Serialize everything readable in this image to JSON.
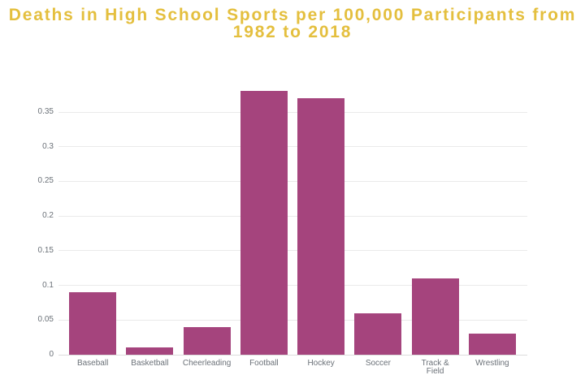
{
  "page": {
    "background": "#ffffff"
  },
  "title": {
    "text": "Deaths in High School Sports per 100,000 Participants from 1982 to 2018",
    "line1": "Deaths in High School Sports per 100,000 Participants from",
    "line2": "1982 to 2018",
    "color": "#E4BF3E"
  },
  "chart_data": {
    "type": "bar",
    "title": "Deaths in High School Sports per 100,000 Participants from 1982 to 2018",
    "categories": [
      "Baseball",
      "Basketball",
      "Cheerleading",
      "Football",
      "Hockey",
      "Soccer",
      "Track & Field",
      "Wrestling"
    ],
    "values": [
      0.09,
      0.01,
      0.04,
      0.38,
      0.37,
      0.06,
      0.11,
      0.03
    ],
    "xtick_labels": [
      "Baseball",
      "Basketball",
      "Cheerleading",
      "Football",
      "Hockey",
      "Soccer",
      "Track &\nField",
      "Wrestling"
    ],
    "xlabel": "",
    "ylabel": "",
    "ylim": [
      0,
      0.38
    ],
    "yticks": [
      0,
      0.05,
      0.1,
      0.15,
      0.2,
      0.25,
      0.3,
      0.35
    ],
    "ytick_labels": [
      "0",
      "0.05",
      "0.1",
      "0.15",
      "0.2",
      "0.25",
      "0.3",
      "0.35"
    ],
    "grid": true,
    "legend": false,
    "bar_color": "#A5447D",
    "gridline_color": "#EAEAEA",
    "baseline_color": "#DCDCDC",
    "axis_label_color": "#6B7178"
  }
}
